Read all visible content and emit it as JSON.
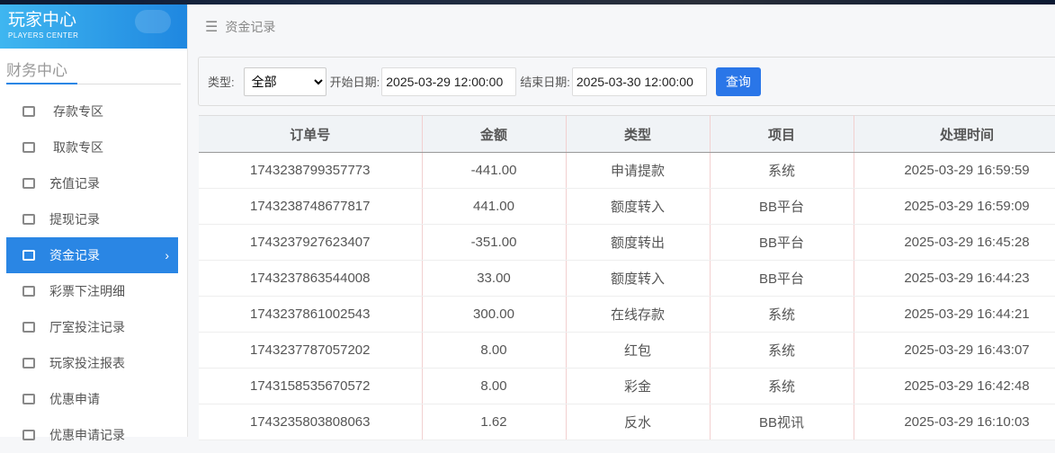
{
  "logo": {
    "title": "玩家中心",
    "subtitle": "PLAYERS CENTER"
  },
  "sidebar": {
    "section": "财务中心",
    "items": [
      {
        "label": "存款专区",
        "icon": "card-icon"
      },
      {
        "label": "取款专区",
        "icon": "hand-money-icon"
      },
      {
        "label": "充值记录",
        "icon": "money-bag-icon"
      },
      {
        "label": "提现记录",
        "icon": "wallet-icon"
      },
      {
        "label": "资金记录",
        "icon": "cash-icon",
        "active": true
      },
      {
        "label": "彩票下注明细",
        "icon": "list-icon"
      },
      {
        "label": "厅室投注记录",
        "icon": "list-bullet-icon"
      },
      {
        "label": "玩家投注报表",
        "icon": "chart-icon"
      },
      {
        "label": "优惠申请",
        "icon": "gift-icon"
      },
      {
        "label": "优惠申请记录",
        "icon": "list-bullet-icon"
      }
    ]
  },
  "breadcrumb": "资金记录",
  "filter": {
    "type_label": "类型:",
    "type_value": "全部",
    "start_label": "开始日期:",
    "start_value": "2025-03-29 12:00:00",
    "end_label": "结束日期:",
    "end_value": "2025-03-30 12:00:00",
    "query": "查询"
  },
  "table": {
    "headers": [
      "订单号",
      "金额",
      "类型",
      "项目",
      "处理时间"
    ],
    "rows": [
      [
        "1743238799357773",
        "-441.00",
        "申请提款",
        "系统",
        "2025-03-29 16:59:59"
      ],
      [
        "1743238748677817",
        "441.00",
        "额度转入",
        "BB平台",
        "2025-03-29 16:59:09"
      ],
      [
        "1743237927623407",
        "-351.00",
        "额度转出",
        "BB平台",
        "2025-03-29 16:45:28"
      ],
      [
        "1743237863544008",
        "33.00",
        "额度转入",
        "BB平台",
        "2025-03-29 16:44:23"
      ],
      [
        "1743237861002543",
        "300.00",
        "在线存款",
        "系统",
        "2025-03-29 16:44:21"
      ],
      [
        "1743237787057202",
        "8.00",
        "红包",
        "系统",
        "2025-03-29 16:43:07"
      ],
      [
        "1743158535670572",
        "8.00",
        "彩金",
        "系统",
        "2025-03-29 16:42:48"
      ],
      [
        "1743235803808063",
        "1.62",
        "反水",
        "BB视讯",
        "2025-03-29 16:10:03"
      ]
    ]
  },
  "colors": {
    "accent": "#2a86e4",
    "button": "#2a76e8"
  }
}
